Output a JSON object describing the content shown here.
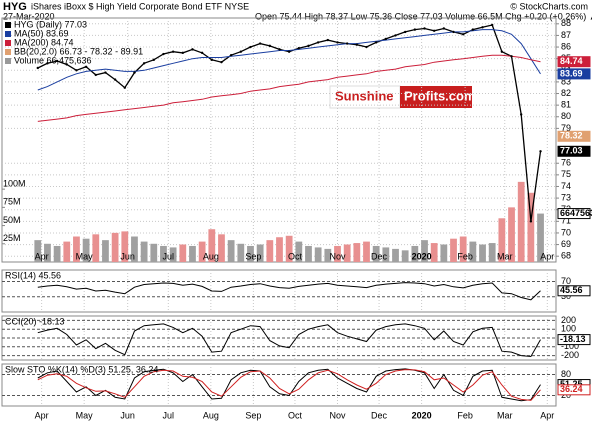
{
  "chart_data": {
    "type": "stock",
    "title": "HYG",
    "subtitle": "iShares iBoxx $ High Yield Corporate Bond ETF  NYSE",
    "source": "© StockCharts.com",
    "date": "27-Mar-2020",
    "quote": "Open 75.44 High 78.37 Low 75.36 Close 77.03 Volume 66.5M Chg +0.20 (+0.26%) ▲",
    "watermark": [
      "Sunshine",
      "Profits.com"
    ],
    "grid": true,
    "xlim": [
      -3.7,
      53.6
    ],
    "xticks": [
      {
        "value": 0.4,
        "label": "Apr"
      },
      {
        "value": 4.8,
        "label": "May"
      },
      {
        "value": 9.3,
        "label": "Jun"
      },
      {
        "value": 13.5,
        "label": "Jul"
      },
      {
        "value": 17.9,
        "label": "Aug"
      },
      {
        "value": 22.3,
        "label": "Sep"
      },
      {
        "value": 26.6,
        "label": "Oct"
      },
      {
        "value": 31,
        "label": "Nov"
      },
      {
        "value": 35.3,
        "label": "Dec"
      },
      {
        "value": 39.7,
        "label": "2020"
      },
      {
        "value": 44.2,
        "label": "Feb"
      },
      {
        "value": 48.3,
        "label": "Mar"
      },
      {
        "value": 52.7,
        "label": "Apr"
      }
    ],
    "price": {
      "ylim": [
        67.5,
        88.5
      ],
      "yticks": [
        68,
        69,
        70,
        71,
        72,
        73,
        74,
        75,
        76,
        79,
        80,
        81,
        82,
        83,
        84,
        85,
        86,
        87,
        88
      ],
      "series": [
        {
          "name": "HYG (Daily) 77.03",
          "color": "#000000",
          "values": [
            84.2,
            84.6,
            84.8,
            84.5,
            84.0,
            84.3,
            83.6,
            83.8,
            83.2,
            82.5,
            83.8,
            84.6,
            84.9,
            85.4,
            85.6,
            85.5,
            85.8,
            85.5,
            84.9,
            84.7,
            85.3,
            85.6,
            86.0,
            86.3,
            86.1,
            85.8,
            85.6,
            85.9,
            86.1,
            86.4,
            86.6,
            86.4,
            86.3,
            86.2,
            86.0,
            86.4,
            86.7,
            87.0,
            87.3,
            87.5,
            87.6,
            87.4,
            87.6,
            87.3,
            87.1,
            87.5,
            87.7,
            87.9,
            85.6,
            85.2,
            80.2,
            71.0,
            77.03
          ]
        },
        {
          "name": "MA(50) 83.69",
          "color": "#1a3ea0",
          "values": [
            82.3,
            82.6,
            83.0,
            83.4,
            83.7,
            83.9,
            84.0,
            84.1,
            84.0,
            83.9,
            83.9,
            84.0,
            84.2,
            84.4,
            84.6,
            84.8,
            85.0,
            85.1,
            85.1,
            85.1,
            85.2,
            85.3,
            85.4,
            85.5,
            85.6,
            85.7,
            85.7,
            85.8,
            85.9,
            86.0,
            86.1,
            86.2,
            86.3,
            86.3,
            86.4,
            86.5,
            86.6,
            86.7,
            86.8,
            86.9,
            87.0,
            87.1,
            87.2,
            87.3,
            87.3,
            87.4,
            87.5,
            87.5,
            87.4,
            87.1,
            86.3,
            85.0,
            83.69
          ]
        },
        {
          "name": "MA(200) 84.74",
          "color": "#cc1f3a",
          "values": [
            79.6,
            79.7,
            79.8,
            79.9,
            80.1,
            80.2,
            80.3,
            80.4,
            80.5,
            80.6,
            80.7,
            80.8,
            80.9,
            81.0,
            81.2,
            81.3,
            81.4,
            81.5,
            81.7,
            81.8,
            81.9,
            82.0,
            82.2,
            82.3,
            82.4,
            82.6,
            82.7,
            82.8,
            83.0,
            83.1,
            83.2,
            83.4,
            83.5,
            83.6,
            83.7,
            83.9,
            84.0,
            84.1,
            84.3,
            84.4,
            84.5,
            84.7,
            84.8,
            84.9,
            85.0,
            85.1,
            85.2,
            85.3,
            85.3,
            85.2,
            85.1,
            84.9,
            84.74
          ]
        }
      ],
      "legend_extra": [
        {
          "name": "BB(20,2.0) 66.73 - 78.32 - 89.91",
          "color": "#e0a070"
        },
        {
          "name": "Volume 66,475,636",
          "color": "#999999"
        }
      ],
      "markers": [
        {
          "value": 84.74,
          "color": "#cc1f3a"
        },
        {
          "value": 83.69,
          "color": "#1a3ea0"
        },
        {
          "value": 78.32,
          "color": "#e0a070"
        },
        {
          "value": 77.03,
          "color": "#000000"
        }
      ]
    },
    "volume": {
      "ylim": [
        0,
        140000000
      ],
      "yticks": [
        {
          "value": 25000000,
          "label": "25M"
        },
        {
          "value": 50000000,
          "label": "50M"
        },
        {
          "value": 75000000,
          "label": "75M"
        },
        {
          "value": 100000000,
          "label": "100M"
        }
      ],
      "up_color": "#a0a0a0",
      "down_color": "#e89090",
      "values": [
        30000000,
        25000000,
        22000000,
        28000000,
        35000000,
        32000000,
        38000000,
        30000000,
        40000000,
        42000000,
        35000000,
        28000000,
        25000000,
        22000000,
        20000000,
        24000000,
        22000000,
        28000000,
        45000000,
        38000000,
        30000000,
        25000000,
        22000000,
        24000000,
        30000000,
        34000000,
        36000000,
        28000000,
        22000000,
        20000000,
        18000000,
        22000000,
        24000000,
        26000000,
        28000000,
        22000000,
        20000000,
        18000000,
        16000000,
        22000000,
        30000000,
        26000000,
        24000000,
        32000000,
        35000000,
        28000000,
        24000000,
        26000000,
        60000000,
        75000000,
        110000000,
        95000000,
        66475636
      ]
    },
    "indicators": [
      {
        "name": "RSI(14) 45.56",
        "ylim": [
          -10,
          100
        ],
        "yticks": [
          30,
          70
        ],
        "series": [
          {
            "color": "#000000",
            "values": [
              55,
              58,
              60,
              56,
              50,
              52,
              45,
              47,
              42,
              38,
              55,
              62,
              64,
              66,
              65,
              60,
              63,
              57,
              45,
              44,
              55,
              58,
              62,
              64,
              58,
              54,
              52,
              57,
              60,
              63,
              65,
              60,
              58,
              56,
              54,
              60,
              63,
              65,
              67,
              66,
              64,
              58,
              62,
              56,
              53,
              60,
              64,
              66,
              40,
              38,
              28,
              22,
              45.56
            ]
          }
        ]
      },
      {
        "name": "CCI(20) -18.13",
        "ylim": [
          -250,
          250
        ],
        "yticks": [
          -200,
          -100,
          0,
          100,
          200
        ],
        "series": [
          {
            "color": "#000000",
            "values": [
              60,
              90,
              110,
              40,
              -80,
              -20,
              -120,
              -60,
              -140,
              -190,
              80,
              140,
              150,
              160,
              120,
              60,
              110,
              20,
              -160,
              -150,
              60,
              100,
              140,
              130,
              -30,
              -90,
              -110,
              40,
              100,
              130,
              150,
              60,
              20,
              -10,
              -40,
              90,
              130,
              150,
              160,
              140,
              110,
              -20,
              80,
              -40,
              -80,
              70,
              110,
              120,
              -150,
              -160,
              -200,
              -210,
              -18.13
            ]
          }
        ]
      },
      {
        "name": "Slow STO %K(14) %D(3) 51.25, 36.24",
        "ylim": [
          -10,
          110
        ],
        "yticks": [
          20,
          80
        ],
        "series": [
          {
            "color": "#000000",
            "values": [
              70,
              85,
              90,
              60,
              30,
              45,
              20,
              35,
              15,
              10,
              70,
              88,
              92,
              95,
              85,
              60,
              80,
              45,
              10,
              12,
              65,
              85,
              92,
              90,
              45,
              25,
              20,
              60,
              85,
              92,
              95,
              70,
              55,
              40,
              30,
              75,
              90,
              94,
              96,
              92,
              85,
              40,
              80,
              35,
              20,
              75,
              90,
              92,
              15,
              10,
              5,
              8,
              51.25
            ]
          },
          {
            "color": "#d02020",
            "values": [
              65,
              78,
              82,
              75,
              55,
              42,
              32,
              33,
              25,
              15,
              45,
              75,
              88,
              92,
              90,
              75,
              72,
              60,
              30,
              18,
              45,
              72,
              88,
              90,
              70,
              40,
              25,
              38,
              65,
              85,
              92,
              82,
              65,
              50,
              38,
              55,
              80,
              90,
              94,
              93,
              88,
              65,
              70,
              50,
              30,
              50,
              78,
              88,
              50,
              18,
              9,
              6,
              36.24
            ]
          }
        ]
      }
    ]
  }
}
